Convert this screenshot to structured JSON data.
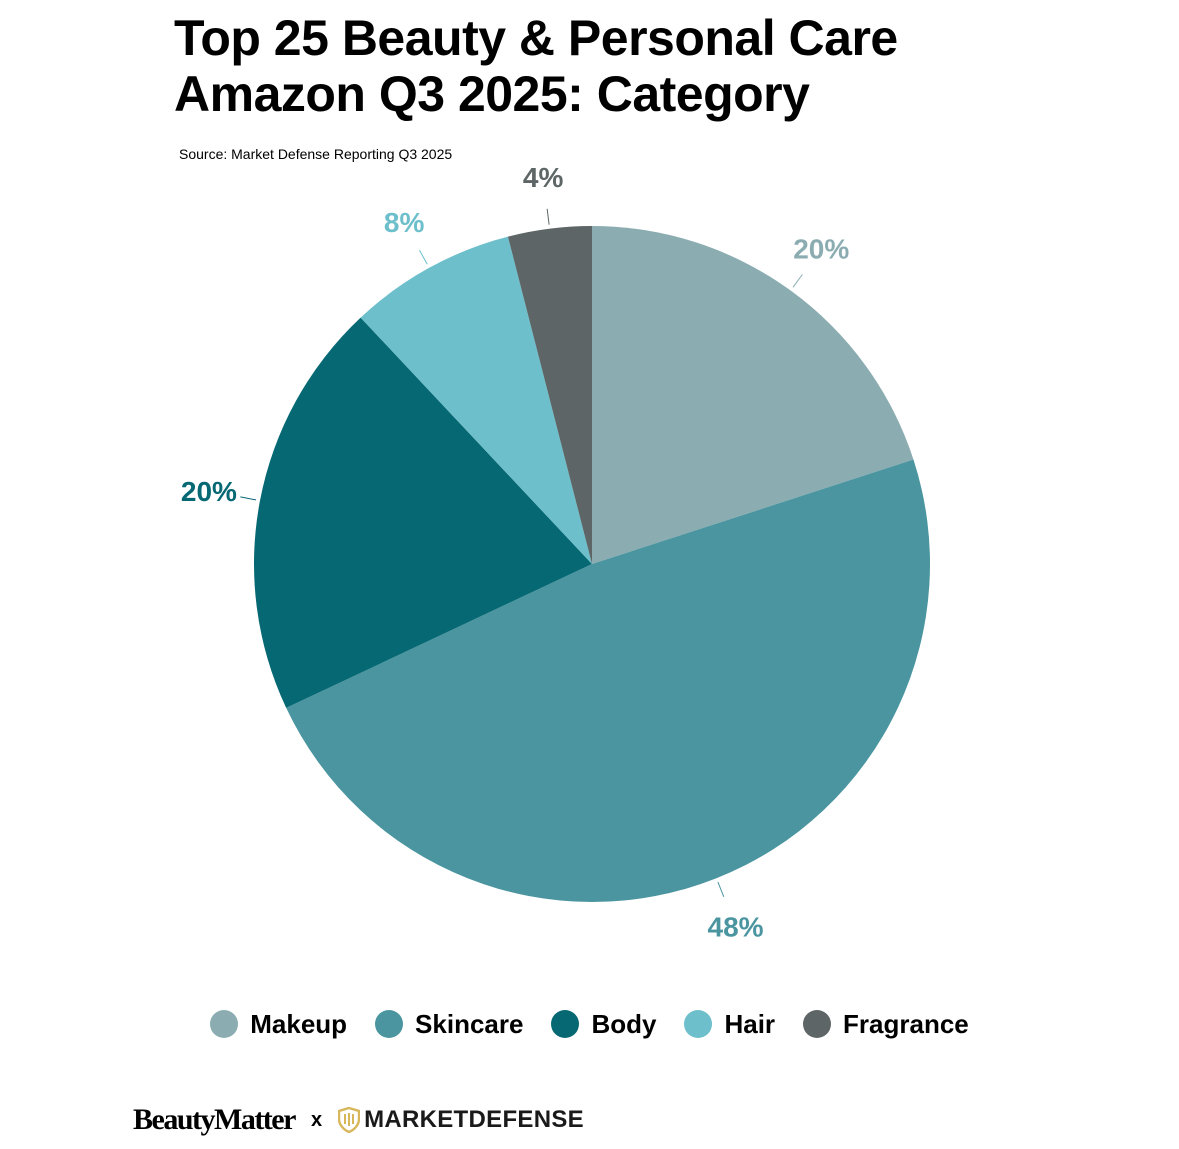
{
  "header": {
    "title_line1": "Top 25 Beauty & Personal Care",
    "title_line2": "Amazon Q3 2025: Category",
    "source": "Source: Market Defense Reporting Q3 2025"
  },
  "chart_data": {
    "type": "pie",
    "title": "Top 25 Beauty & Personal Care Amazon Q3 2025: Category",
    "legend_position": "bottom",
    "slices": [
      {
        "label": "Makeup",
        "value": 20,
        "display": "20%",
        "color": "#8badb1"
      },
      {
        "label": "Skincare",
        "value": 48,
        "display": "48%",
        "color": "#4a95a0"
      },
      {
        "label": "Body",
        "value": 20,
        "display": "20%",
        "color": "#056873"
      },
      {
        "label": "Hair",
        "value": 8,
        "display": "8%",
        "color": "#6cbfcb"
      },
      {
        "label": "Fragrance",
        "value": 4,
        "display": "4%",
        "color": "#5d6566"
      }
    ]
  },
  "legend": {
    "items": [
      {
        "label": "Makeup",
        "color": "#8badb1"
      },
      {
        "label": "Skincare",
        "color": "#4a95a0"
      },
      {
        "label": "Body",
        "color": "#056873"
      },
      {
        "label": "Hair",
        "color": "#6cbfcb"
      },
      {
        "label": "Fragrance",
        "color": "#5d6566"
      }
    ]
  },
  "footer": {
    "brand1": "BeautyMatter",
    "separator": "x",
    "brand2": "MARKETDEFENSE",
    "brand2_color": "#d8b65a",
    "brand2_icon": "shield-icon"
  }
}
